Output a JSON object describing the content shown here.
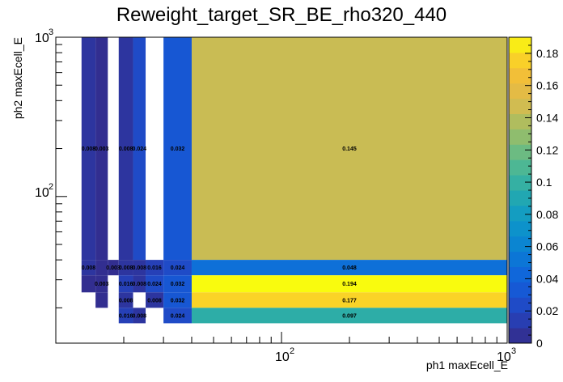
{
  "chart_data": {
    "type": "heatmap",
    "title": "Reweight_target_SR_BE_rho320_440",
    "xlabel": "ph1 maxEcell_E",
    "ylabel": "ph2 maxEcell_E",
    "x_scale": "log",
    "y_scale": "log",
    "xlim": [
      10,
      1000
    ],
    "ylim": [
      12,
      1000
    ],
    "x_edges": [
      13,
      15,
      17,
      19,
      22,
      25,
      30,
      40,
      1000
    ],
    "y_edges": [
      12,
      16,
      20,
      25,
      32,
      40,
      1000
    ],
    "x_tick_labels": [
      "10^2",
      "10^3"
    ],
    "y_tick_labels": [
      "10^2",
      "10^3"
    ],
    "colorbar": {
      "min": 0,
      "max": 0.19,
      "ticks": [
        "0",
        "0.02",
        "0.04",
        "0.06",
        "0.08",
        "0.1",
        "0.12",
        "0.14",
        "0.16",
        "0.18"
      ]
    },
    "cells": [
      {
        "xb": 0,
        "yb": 5,
        "value": 0.008,
        "label": "0.008"
      },
      {
        "xb": 1,
        "yb": 5,
        "value": 0.003,
        "label": "0.003"
      },
      {
        "xb": 3,
        "yb": 5,
        "value": 0.008,
        "label": "0.008"
      },
      {
        "xb": 4,
        "yb": 5,
        "value": 0.024,
        "label": "0.024"
      },
      {
        "xb": 6,
        "yb": 5,
        "value": 0.032,
        "label": "0.032"
      },
      {
        "xb": 7,
        "yb": 5,
        "value": 0.145,
        "label": "0.145"
      },
      {
        "xb": 0,
        "yb": 4,
        "value": 0.008,
        "label": "0.008"
      },
      {
        "xb": 1,
        "yb": 4,
        "value": 0.003,
        "label": ""
      },
      {
        "xb": 2,
        "yb": 4,
        "value": 0.003,
        "label": "0.003"
      },
      {
        "xb": 3,
        "yb": 4,
        "value": 0.008,
        "label": "0.008"
      },
      {
        "xb": 4,
        "yb": 4,
        "value": 0.008,
        "label": "0.008"
      },
      {
        "xb": 5,
        "yb": 4,
        "value": 0.016,
        "label": "0.016"
      },
      {
        "xb": 6,
        "yb": 4,
        "value": 0.024,
        "label": "0.024"
      },
      {
        "xb": 7,
        "yb": 4,
        "value": 0.048,
        "label": "0.048"
      },
      {
        "xb": 0,
        "yb": 3,
        "value": 0.003,
        "label": ""
      },
      {
        "xb": 1,
        "yb": 3,
        "value": 0.003,
        "label": "0.003"
      },
      {
        "xb": 3,
        "yb": 3,
        "value": 0.016,
        "label": "0.016"
      },
      {
        "xb": 4,
        "yb": 3,
        "value": 0.008,
        "label": "0.008"
      },
      {
        "xb": 5,
        "yb": 3,
        "value": 0.024,
        "label": "0.024"
      },
      {
        "xb": 6,
        "yb": 3,
        "value": 0.032,
        "label": "0.032"
      },
      {
        "xb": 7,
        "yb": 3,
        "value": 0.194,
        "label": "0.194"
      },
      {
        "xb": 1,
        "yb": 2,
        "value": 0.003,
        "label": ""
      },
      {
        "xb": 3,
        "yb": 2,
        "value": 0.008,
        "label": "0.008"
      },
      {
        "xb": 5,
        "yb": 2,
        "value": 0.008,
        "label": "0.008"
      },
      {
        "xb": 6,
        "yb": 2,
        "value": 0.032,
        "label": "0.032"
      },
      {
        "xb": 7,
        "yb": 2,
        "value": 0.177,
        "label": "0.177"
      },
      {
        "xb": 3,
        "yb": 1,
        "value": 0.016,
        "label": "0.016"
      },
      {
        "xb": 4,
        "yb": 1,
        "value": 0.008,
        "label": "0.008"
      },
      {
        "xb": 6,
        "yb": 1,
        "value": 0.024,
        "label": "0.024"
      },
      {
        "xb": 7,
        "yb": 1,
        "value": 0.097,
        "label": "0.097"
      }
    ]
  }
}
